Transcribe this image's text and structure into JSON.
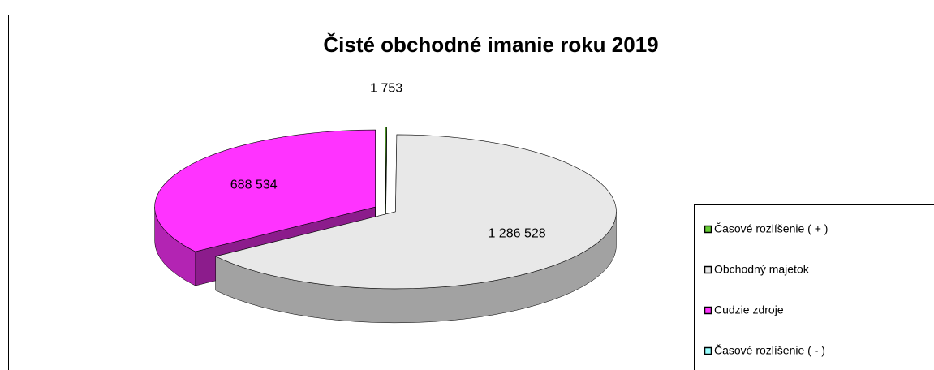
{
  "chart_data": {
    "type": "pie",
    "title": "Čisté obchodné imanie roku 2019",
    "categories": [
      "Časové rozlíšenie ( + )",
      "Obchodný majetok",
      "Cudzie zdroje",
      "Časové rozlíšenie  ( - )"
    ],
    "values": [
      1753,
      1286528,
      688534,
      0
    ],
    "value_labels": [
      "1 753",
      "1 286 528",
      "688 534",
      null
    ],
    "colors": [
      "#66cc33",
      "#e8e8e8",
      "#ff33ff",
      "#99ffff"
    ],
    "legend": "right"
  }
}
